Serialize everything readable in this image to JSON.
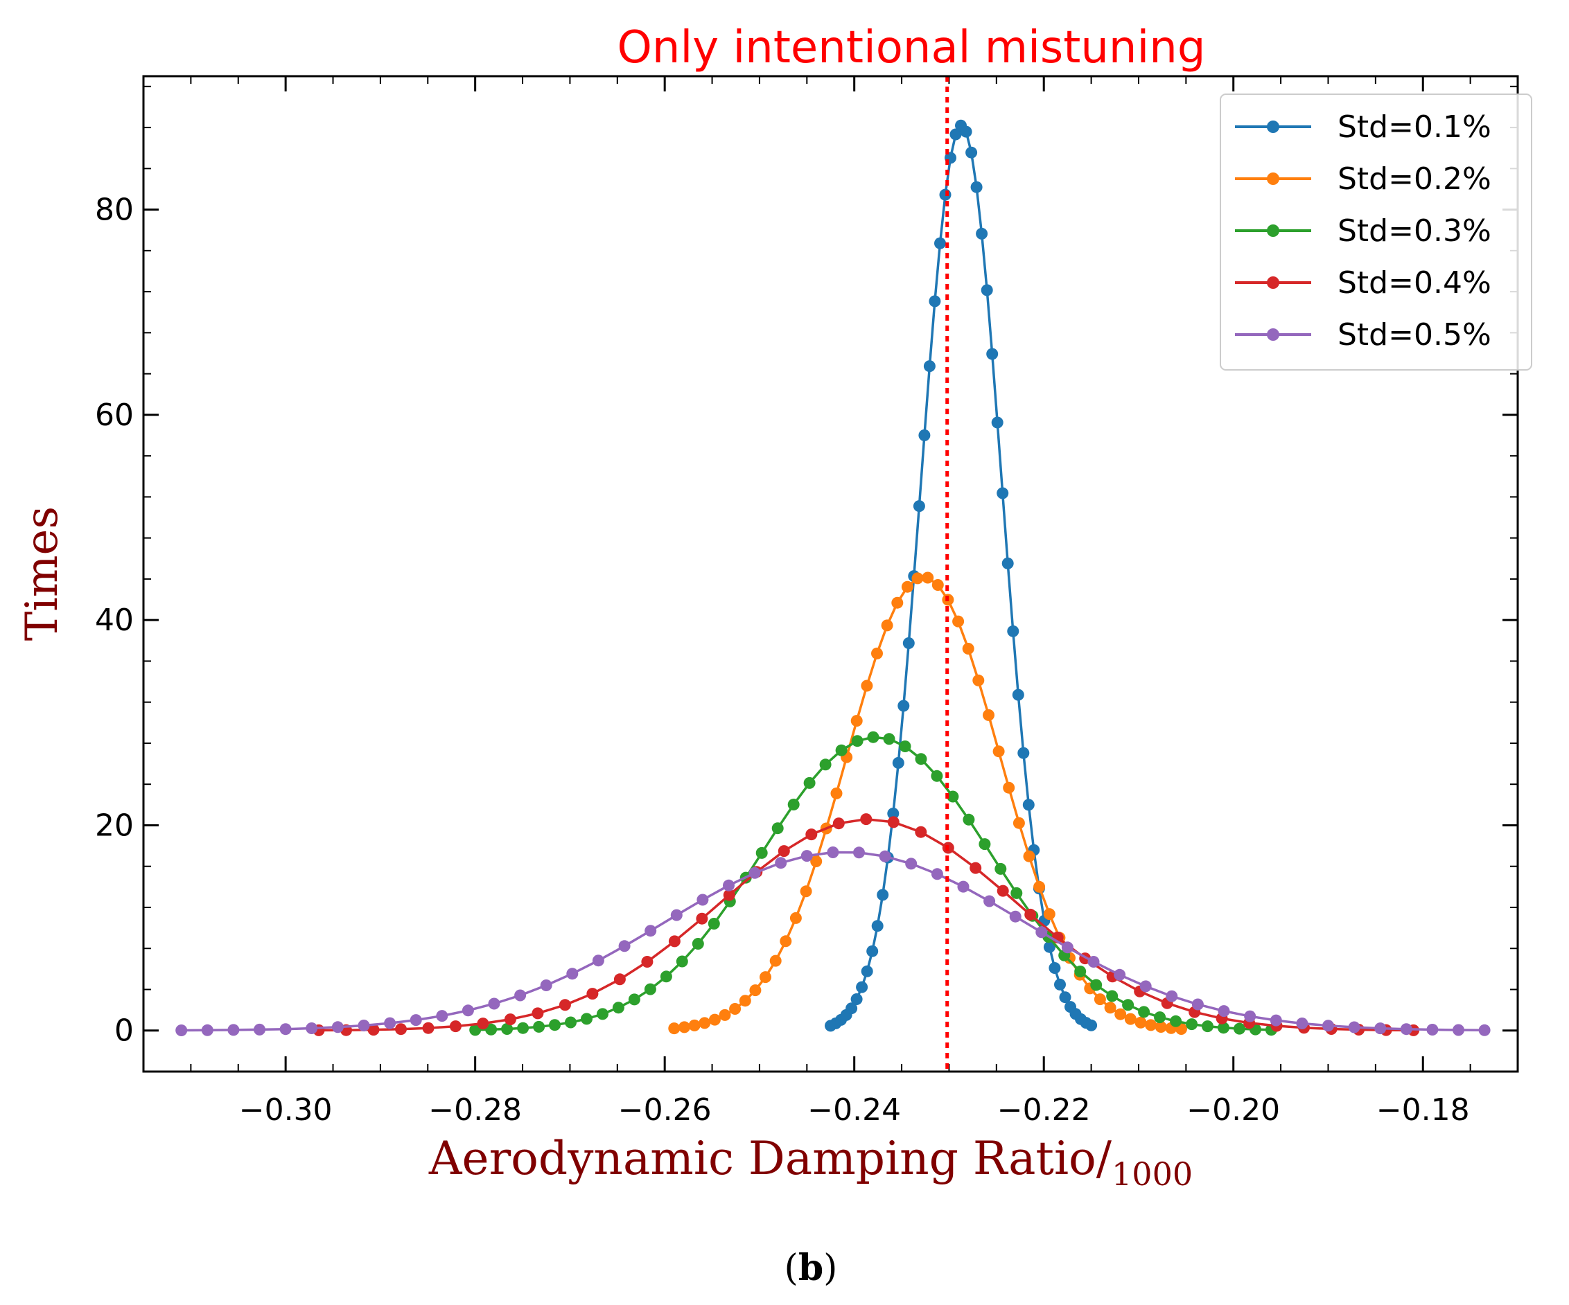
{
  "chart_data": {
    "type": "line",
    "title": "Only intentional mistuning",
    "xlabel_main": "Aerodynamic Damping Ratio/",
    "xlabel_sub": "1000",
    "ylabel": "Times",
    "caption_open": "(",
    "caption_letter": "b",
    "caption_close": ")",
    "xlim": [
      -0.315,
      -0.17
    ],
    "ylim": [
      -4,
      93
    ],
    "xticks": [
      -0.3,
      -0.28,
      -0.26,
      -0.24,
      -0.22,
      -0.2,
      -0.18
    ],
    "xtick_labels": [
      "−0.30",
      "−0.28",
      "−0.26",
      "−0.24",
      "−0.22",
      "−0.20",
      "−0.18"
    ],
    "yticks": [
      0,
      20,
      40,
      60,
      80
    ],
    "ytick_labels": [
      "0",
      "20",
      "40",
      "60",
      "80"
    ],
    "reference_line": {
      "x": -0.2302,
      "style": "dotted",
      "color": "#ff0000"
    },
    "legend_position": "top-right",
    "series": [
      {
        "name": "Std=0.1%",
        "color": "#1f77b4",
        "mean": -0.2287,
        "std": 0.00426,
        "peak": 88.2,
        "xmin": -0.2425,
        "xmax": -0.215,
        "points": 51
      },
      {
        "name": "Std=0.2%",
        "color": "#ff7f0e",
        "mean": -0.2327,
        "std": 0.00806,
        "peak": 44.2,
        "xmin": -0.259,
        "xmax": -0.2055,
        "points": 51
      },
      {
        "name": "Std=0.3%",
        "color": "#2ca02c",
        "mean": -0.2377,
        "std": 0.01203,
        "peak": 28.6,
        "xmin": -0.28,
        "xmax": -0.196,
        "points": 51
      },
      {
        "name": "Std=0.4%",
        "color": "#d62728",
        "mean": -0.2385,
        "std": 0.01558,
        "peak": 20.6,
        "xmin": -0.2965,
        "xmax": -0.181,
        "points": 41
      },
      {
        "name": "Std=0.5%",
        "color": "#9467bd",
        "mean": -0.241,
        "std": 0.019,
        "peak": 17.4,
        "xmin": -0.311,
        "xmax": -0.1735,
        "points": 51
      }
    ]
  }
}
